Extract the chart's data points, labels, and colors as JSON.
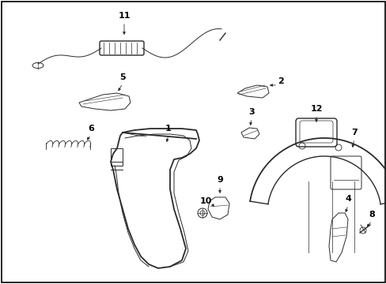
{
  "bg_color": "#ffffff",
  "line_color": "#2a2a2a",
  "label_color": "#000000",
  "figsize": [
    4.89,
    3.6
  ],
  "dpi": 100,
  "xlim": [
    0,
    489
  ],
  "ylim": [
    0,
    360
  ]
}
